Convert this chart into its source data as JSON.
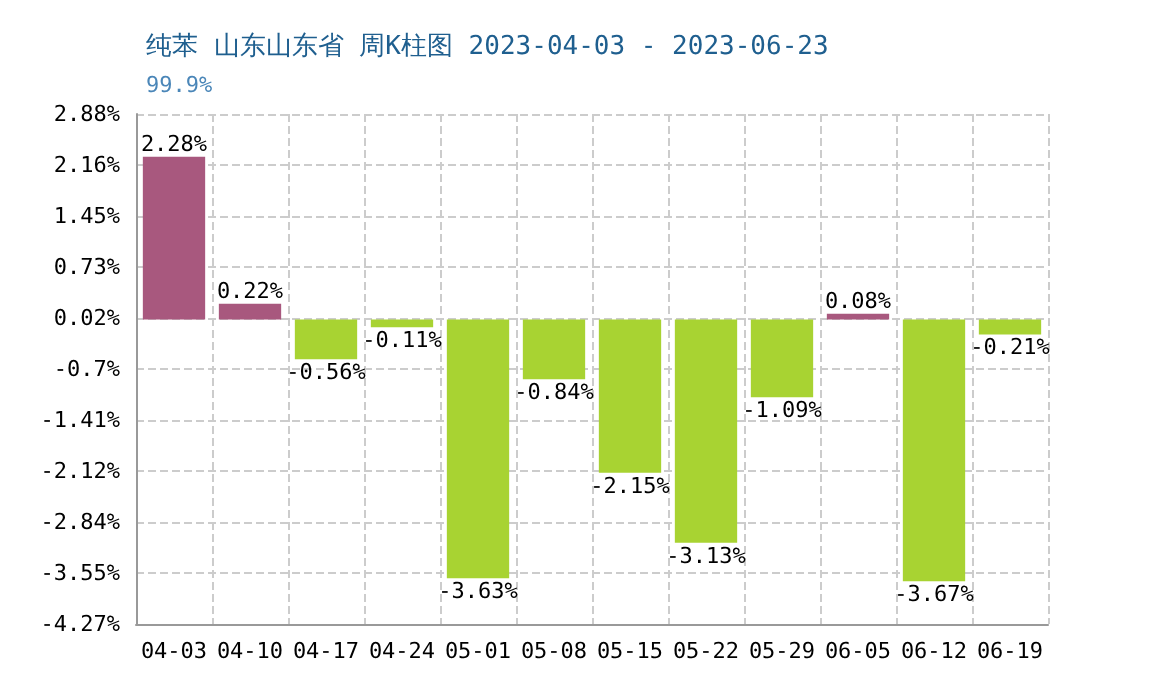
{
  "chart_data": {
    "type": "bar",
    "title": "纯苯 山东山东省 周K柱图 2023-04-03 - 2023-06-23",
    "subtitle": "99.9%",
    "categories": [
      "04-03",
      "04-10",
      "04-17",
      "04-24",
      "05-01",
      "05-08",
      "05-15",
      "05-22",
      "05-29",
      "06-05",
      "06-12",
      "06-19"
    ],
    "values": [
      2.28,
      0.22,
      -0.56,
      -0.11,
      -3.63,
      -0.84,
      -2.15,
      -3.13,
      -1.09,
      0.08,
      -3.67,
      -0.21
    ],
    "colors": [
      "#a8587e",
      "#a8587e",
      "#a8d332",
      "#a8d332",
      "#a8d332",
      "#a8d332",
      "#a8d332",
      "#a8d332",
      "#a8d332",
      "#a8587e",
      "#a8d332",
      "#a8d332"
    ],
    "value_labels": [
      "2.28%",
      "0.22%",
      "-0.56%",
      "-0.11%",
      "-3.63%",
      "-0.84%",
      "-2.15%",
      "-3.13%",
      "-1.09%",
      "0.08%",
      "-3.67%",
      "-0.21%"
    ],
    "ylim": [
      -4.27,
      2.88
    ],
    "yticks": [
      {
        "value": -4.27,
        "label": "-4.27%"
      },
      {
        "value": -3.555,
        "label": "-3.55%"
      },
      {
        "value": -2.84,
        "label": "-2.84%"
      },
      {
        "value": -2.125,
        "label": "-2.12%"
      },
      {
        "value": -1.41,
        "label": "-1.41%"
      },
      {
        "value": -0.695,
        "label": "-0.7%"
      },
      {
        "value": 0.02,
        "label": "0.02%"
      },
      {
        "value": 0.735,
        "label": "0.73%"
      },
      {
        "value": 1.45,
        "label": "1.45%"
      },
      {
        "value": 2.165,
        "label": "2.16%"
      },
      {
        "value": 2.88,
        "label": "2.88%"
      }
    ],
    "grid": true
  }
}
